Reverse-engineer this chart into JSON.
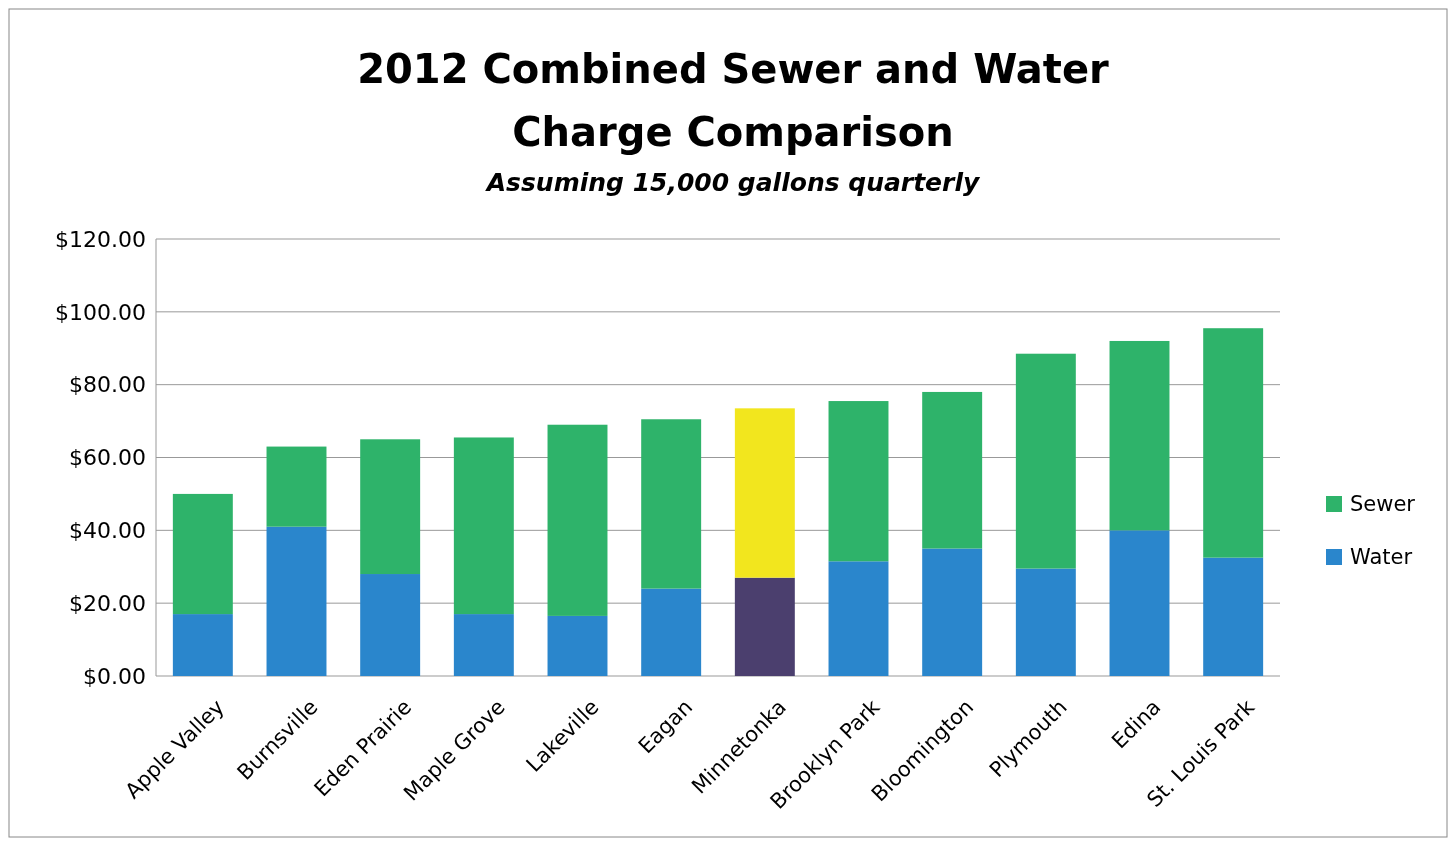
{
  "chart_data": {
    "type": "bar",
    "title": "2012 Combined Sewer and Water\nCharge Comparison",
    "subtitle": "Assuming 15,000 gallons quarterly",
    "categories": [
      "Apple Valley",
      "Burnsville",
      "Eden Prairie",
      "Maple Grove",
      "Lakeville",
      "Eagan",
      "Minnetonka",
      "Brooklyn Park",
      "Bloomington",
      "Plymouth",
      "Edina",
      "St. Louis Park"
    ],
    "stacked": true,
    "series": [
      {
        "name": "Water",
        "color": "#2a86cc",
        "colors": [
          "#2a86cc",
          "#2a86cc",
          "#2a86cc",
          "#2a86cc",
          "#2a86cc",
          "#2a86cc",
          "#4b3f6e",
          "#2a86cc",
          "#2a86cc",
          "#2a86cc",
          "#2a86cc",
          "#2a86cc"
        ],
        "values": [
          17,
          41,
          28,
          17,
          16.5,
          24,
          27,
          31.5,
          35,
          29.5,
          40,
          32.5
        ]
      },
      {
        "name": "Sewer",
        "color": "#2eb36a",
        "colors": [
          "#2eb36a",
          "#2eb36a",
          "#2eb36a",
          "#2eb36a",
          "#2eb36a",
          "#2eb36a",
          "#f2e61e",
          "#2eb36a",
          "#2eb36a",
          "#2eb36a",
          "#2eb36a",
          "#2eb36a"
        ],
        "values": [
          33,
          22,
          37,
          48.5,
          52.5,
          46.5,
          46.5,
          44,
          43,
          59,
          52,
          63
        ]
      }
    ],
    "ylim": [
      0,
      120
    ],
    "yticks": [
      {
        "value": 0,
        "label": "$0.00"
      },
      {
        "value": 20,
        "label": "$20.00"
      },
      {
        "value": 40,
        "label": "$40.00"
      },
      {
        "value": 60,
        "label": "$60.00"
      },
      {
        "value": 80,
        "label": "$80.00"
      },
      {
        "value": 100,
        "label": "$100.00"
      },
      {
        "value": 120,
        "label": "$120.00"
      }
    ],
    "grid": "y",
    "legend": "right"
  }
}
